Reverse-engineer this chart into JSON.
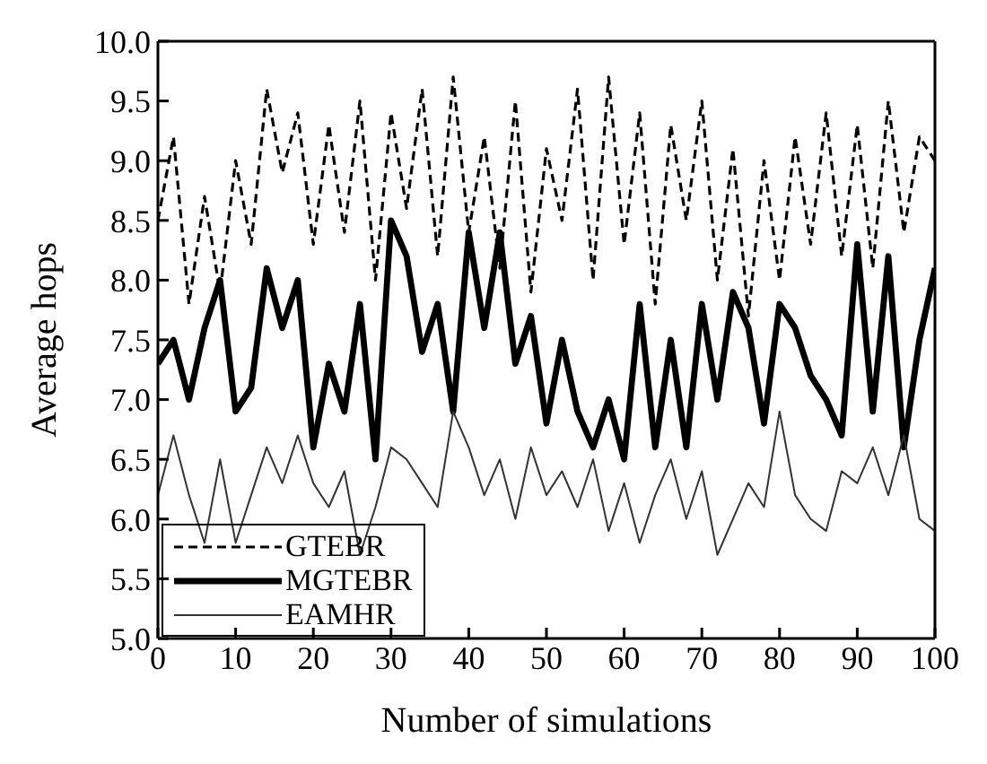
{
  "chart_data": {
    "type": "line",
    "xlabel": "Number of simulations",
    "ylabel": "Average hops",
    "x": [
      0,
      2,
      4,
      6,
      8,
      10,
      12,
      14,
      16,
      18,
      20,
      22,
      24,
      26,
      28,
      30,
      32,
      34,
      36,
      38,
      40,
      42,
      44,
      46,
      48,
      50,
      52,
      54,
      56,
      58,
      60,
      62,
      64,
      66,
      68,
      70,
      72,
      74,
      76,
      78,
      80,
      82,
      84,
      86,
      88,
      90,
      92,
      94,
      96,
      98,
      100
    ],
    "series": [
      {
        "name": "GTEBR",
        "color": "#000000",
        "line_style": "dashed",
        "values": [
          8.5,
          9.2,
          7.8,
          8.7,
          7.9,
          9.0,
          8.3,
          9.6,
          8.9,
          9.4,
          8.3,
          9.3,
          8.4,
          9.5,
          8.0,
          9.4,
          8.6,
          9.6,
          8.2,
          9.7,
          8.4,
          9.2,
          8.1,
          9.5,
          7.9,
          9.1,
          8.5,
          9.6,
          8.0,
          9.7,
          8.3,
          9.4,
          7.8,
          9.3,
          8.5,
          9.5,
          8.0,
          9.1,
          7.7,
          9.0,
          8.0,
          9.2,
          8.3,
          9.4,
          8.2,
          9.3,
          8.1,
          9.5,
          8.4,
          9.2,
          9.0
        ]
      },
      {
        "name": "MGTEBR",
        "color": "#000000",
        "line_style": "solid",
        "values": [
          7.3,
          7.5,
          7.0,
          7.6,
          8.0,
          6.9,
          7.1,
          8.1,
          7.6,
          8.0,
          6.6,
          7.3,
          6.9,
          7.8,
          6.5,
          8.5,
          8.2,
          7.4,
          7.8,
          6.9,
          8.4,
          7.6,
          8.4,
          7.3,
          7.7,
          6.8,
          7.5,
          6.9,
          6.6,
          7.0,
          6.5,
          7.8,
          6.6,
          7.5,
          6.6,
          7.8,
          7.0,
          7.9,
          7.6,
          6.8,
          7.8,
          7.6,
          7.2,
          7.0,
          6.7,
          8.3,
          6.9,
          8.2,
          6.6,
          7.5,
          8.1
        ]
      },
      {
        "name": "EAMHR",
        "color": "#333333",
        "line_style": "solid",
        "values": [
          6.2,
          6.7,
          6.2,
          5.8,
          6.5,
          5.8,
          6.2,
          6.6,
          6.3,
          6.7,
          6.3,
          6.1,
          6.4,
          5.7,
          6.1,
          6.6,
          6.5,
          6.3,
          6.1,
          6.9,
          6.6,
          6.2,
          6.5,
          6.0,
          6.6,
          6.2,
          6.4,
          6.1,
          6.5,
          5.9,
          6.3,
          5.8,
          6.2,
          6.5,
          6.0,
          6.4,
          5.7,
          6.0,
          6.3,
          6.1,
          6.9,
          6.2,
          6.0,
          5.9,
          6.4,
          6.3,
          6.6,
          6.2,
          6.7,
          6.0,
          5.9
        ]
      }
    ],
    "xlim": [
      0,
      100
    ],
    "xticks": [
      0,
      10,
      20,
      30,
      40,
      50,
      60,
      70,
      80,
      90,
      100
    ],
    "ylim": [
      5,
      10
    ],
    "yticks": [
      {
        "value": 5,
        "label": "5.0"
      },
      5.5,
      {
        "value": 6,
        "label": "6.0"
      },
      6.5,
      {
        "value": 7,
        "label": "7.0"
      },
      7.5,
      {
        "value": 8,
        "label": "8.0"
      },
      8.5,
      {
        "value": 9,
        "label": "9.0"
      },
      9.5,
      {
        "value": 10,
        "label": "10.0"
      }
    ],
    "legend": "bottom left",
    "marker": "none",
    "grid": false
  }
}
